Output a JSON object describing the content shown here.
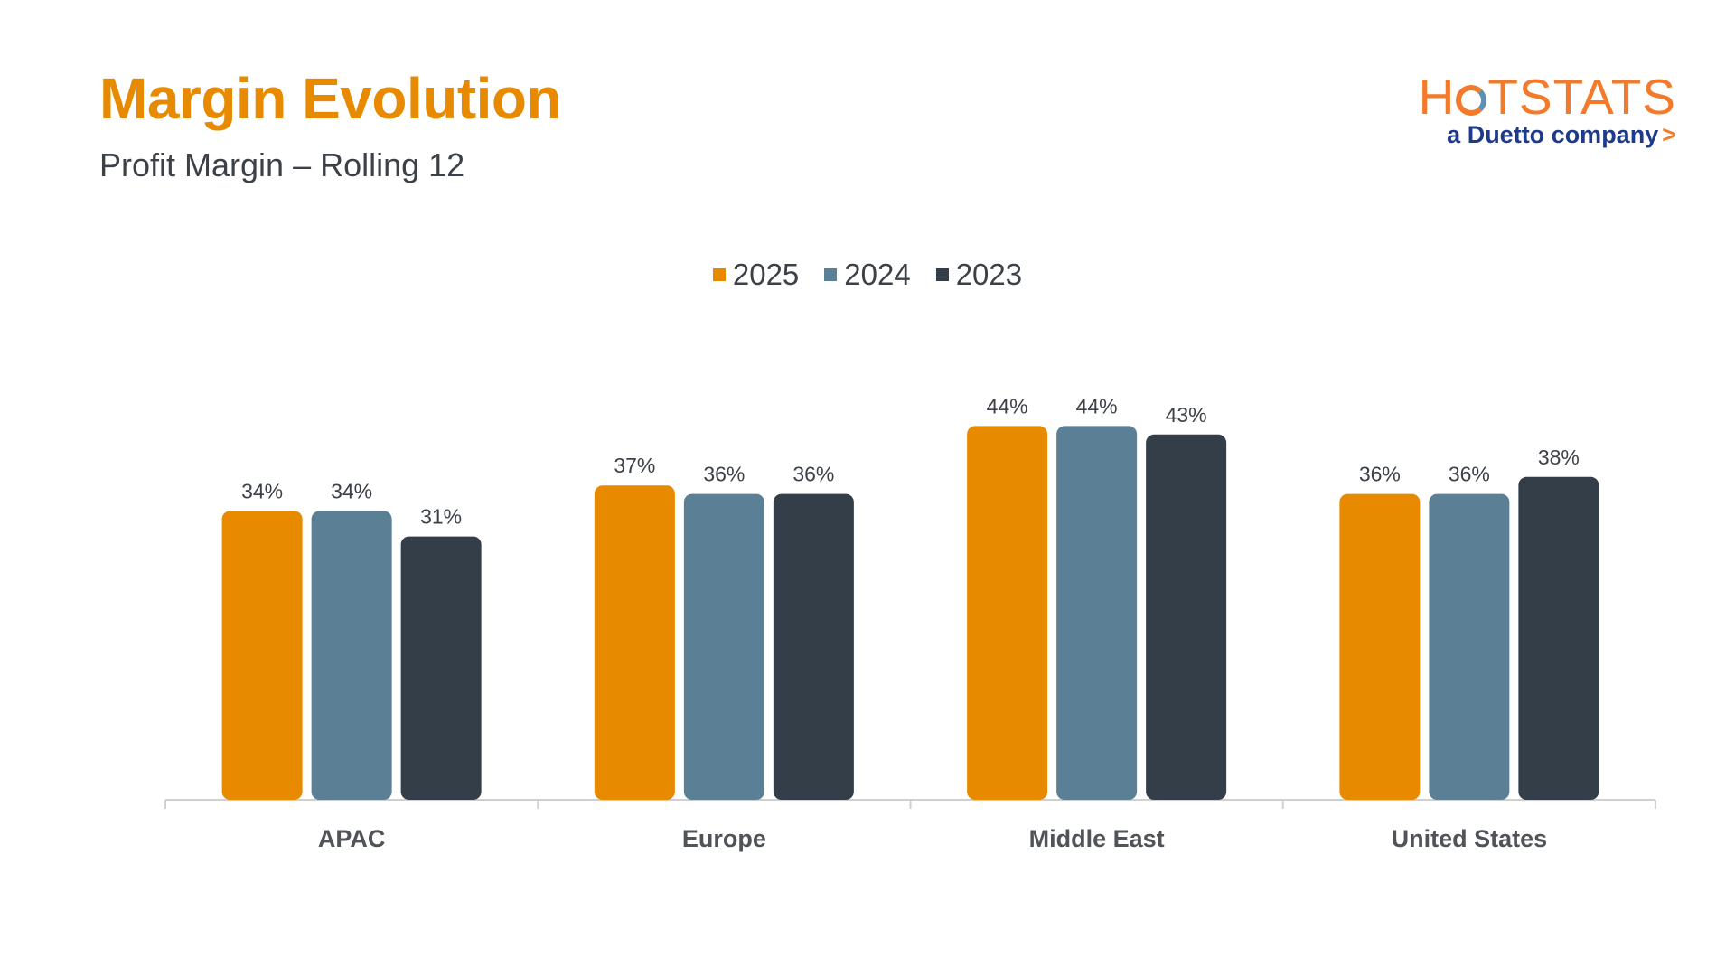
{
  "header": {
    "title": "Margin Evolution",
    "subtitle": "Profit Margin – Rolling 12"
  },
  "logo": {
    "main_before": "H",
    "main_after": "TSTATS",
    "sub": "a Duetto company",
    "chevron": ">",
    "colors": {
      "orange": "#F27A2A",
      "navy": "#1E3A8A"
    }
  },
  "chart_data": {
    "type": "bar",
    "categories": [
      "APAC",
      "Europe",
      "Middle East",
      "United States"
    ],
    "series": [
      {
        "name": "2025",
        "color": "#E88A00",
        "values": [
          34,
          37,
          44,
          36
        ]
      },
      {
        "name": "2024",
        "color": "#5B8095",
        "values": [
          34,
          36,
          44,
          36
        ]
      },
      {
        "name": "2023",
        "color": "#343E49",
        "values": [
          31,
          36,
          43,
          38
        ]
      }
    ],
    "value_suffix": "%",
    "value_labels": [
      [
        "34%",
        "37%",
        "44%",
        "36%"
      ],
      [
        "34%",
        "36%",
        "44%",
        "36%"
      ],
      [
        "31%",
        "36%",
        "43%",
        "38%"
      ]
    ],
    "ylim": [
      0,
      50
    ],
    "legend_position": "top-center",
    "grid": false,
    "xlabel": "",
    "ylabel": ""
  }
}
